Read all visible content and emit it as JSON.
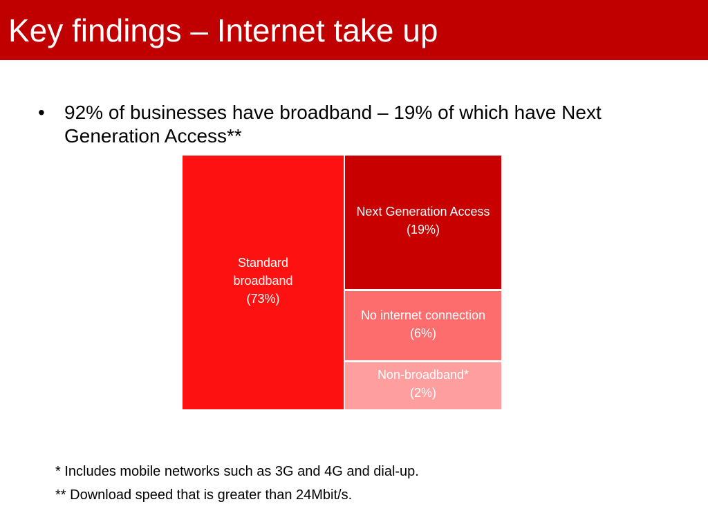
{
  "slide": {
    "title": "Key findings – Internet take up",
    "bullet": {
      "symbol": "•",
      "text": "92% of businesses have broadband – 19% of which have Next Generation Access**"
    },
    "footnotes": [
      "* Includes mobile networks such as 3G and 4G and dial-up.",
      "** Download speed that is greater than 24Mbit/s."
    ]
  },
  "colors": {
    "title_bar": "#c00000",
    "title_text": "#ffffff"
  },
  "chart_data": {
    "type": "treemap",
    "items": [
      {
        "label_lines": [
          "Standard",
          "broadband",
          "(73%)"
        ],
        "value": 73,
        "color": "#fe1111"
      },
      {
        "label_lines": [
          "Next Generation Access",
          "(19%)"
        ],
        "value": 19,
        "color": "#c80000"
      },
      {
        "label_lines": [
          "No internet connection",
          "(6%)"
        ],
        "value": 6,
        "color": "#fe6d6d"
      },
      {
        "label_lines": [
          "Non-broadband*",
          "(2%)"
        ],
        "value": 2,
        "color": "#fe9e9e"
      }
    ]
  }
}
